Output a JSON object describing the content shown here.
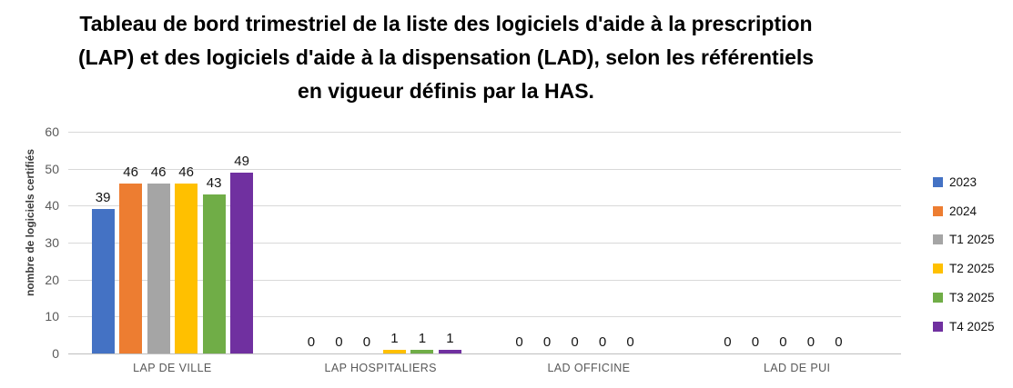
{
  "title": "Tableau de bord trimestriel de la liste des logiciels d'aide à la prescription (LAP) et des logiciels d'aide à la dispensation (LAD), selon les référentiels en vigueur définis par la HAS.",
  "chart_data": {
    "type": "bar",
    "title": "Tableau de bord trimestriel de la liste des logiciels d'aide à la prescription (LAP) et des logiciels d'aide à la dispensation (LAD), selon les référentiels en vigueur définis par la HAS.",
    "xlabel": "",
    "ylabel": "nombre de logiciels certifiés",
    "categories": [
      "LAP DE VILLE",
      "LAP HOSPITALIERS",
      "LAD OFFICINE",
      "LAD DE PUI"
    ],
    "series": [
      {
        "name": "2023",
        "color": "#4472C4",
        "values": [
          39,
          0,
          0,
          0
        ]
      },
      {
        "name": "2024",
        "color": "#ED7D31",
        "values": [
          46,
          0,
          0,
          0
        ]
      },
      {
        "name": "T1 2025",
        "color": "#A5A5A5",
        "values": [
          46,
          0,
          0,
          0
        ]
      },
      {
        "name": "T2 2025",
        "color": "#FFC000",
        "values": [
          46,
          1,
          0,
          0
        ]
      },
      {
        "name": "T3 2025",
        "color": "#70AD47",
        "values": [
          43,
          1,
          0,
          0
        ]
      },
      {
        "name": "T4 2025",
        "color": "#7030A0",
        "values": [
          49,
          1,
          null,
          null
        ]
      }
    ],
    "yticks": [
      0,
      10,
      20,
      30,
      40,
      50,
      60
    ],
    "ylim": [
      0,
      60
    ],
    "grid": true,
    "data_labels": true,
    "legend_position": "right",
    "note_null_values": "no bar and no data label rendered for null (missing) values"
  }
}
